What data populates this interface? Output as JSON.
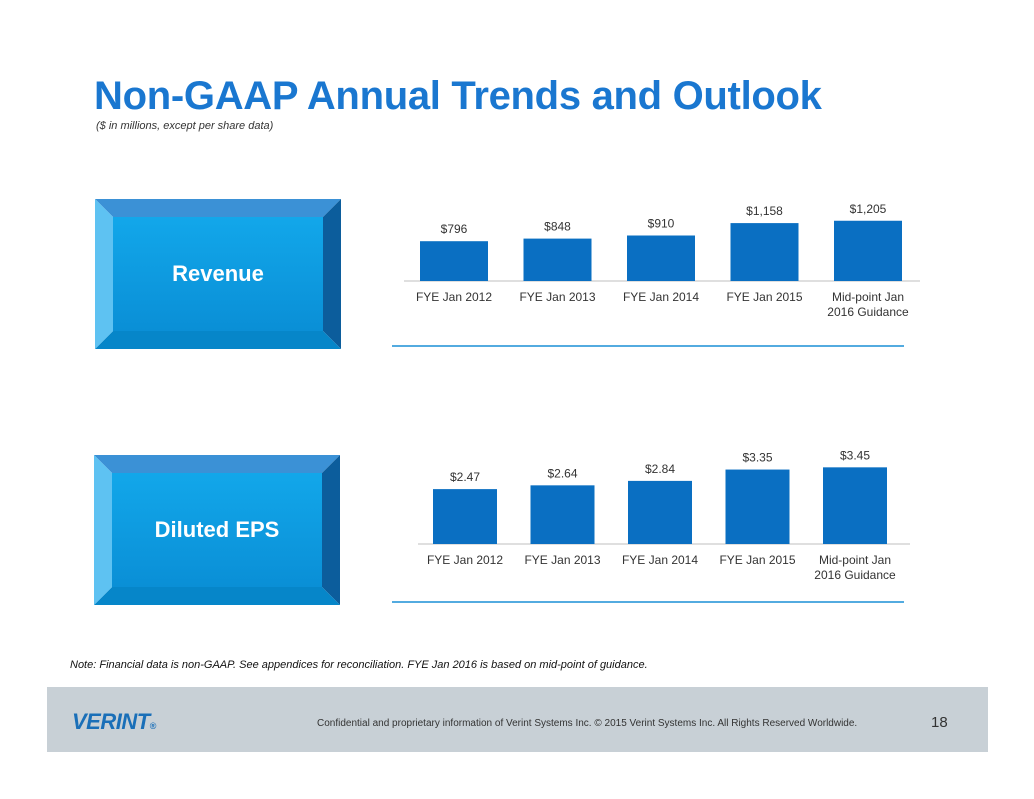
{
  "title": "Non-GAAP Annual Trends and Outlook",
  "subtitle": "($ in millions, except per share data)",
  "panels": [
    {
      "label": "Revenue"
    },
    {
      "label": "Diluted EPS"
    }
  ],
  "chart_data": [
    {
      "type": "bar",
      "title": "Revenue",
      "categories": [
        "FYE Jan 2012",
        "FYE Jan 2013",
        "FYE Jan 2014",
        "FYE Jan 2015",
        "Mid-point Jan\n2016 Guidance"
      ],
      "values": [
        796,
        848,
        910,
        1158,
        1205
      ],
      "data_labels": [
        "$796",
        "$848",
        "$910",
        "$1,158",
        "$1,205"
      ],
      "ylim": [
        0,
        3000
      ],
      "color": "#0a6fc2"
    },
    {
      "type": "bar",
      "title": "Diluted EPS",
      "categories": [
        "FYE Jan 2012",
        "FYE Jan 2013",
        "FYE Jan 2014",
        "FYE Jan 2015",
        "Mid-point Jan\n2016 Guidance"
      ],
      "values": [
        2.47,
        2.64,
        2.84,
        3.35,
        3.45
      ],
      "data_labels": [
        "$2.47",
        "$2.64",
        "$2.84",
        "$3.35",
        "$3.45"
      ],
      "ylim": [
        0,
        4.5
      ],
      "color": "#0a6fc2"
    }
  ],
  "note": "Note: Financial data is non-GAAP.  See appendices for reconciliation.  FYE Jan 2016 is based on mid-point of guidance.",
  "footer": {
    "logo": "VERINT",
    "logo_mark": "®",
    "confidential": "Confidential and proprietary information of Verint Systems Inc. © 2015 Verint Systems Inc. All Rights Reserved Worldwide.",
    "page_number": "18"
  }
}
